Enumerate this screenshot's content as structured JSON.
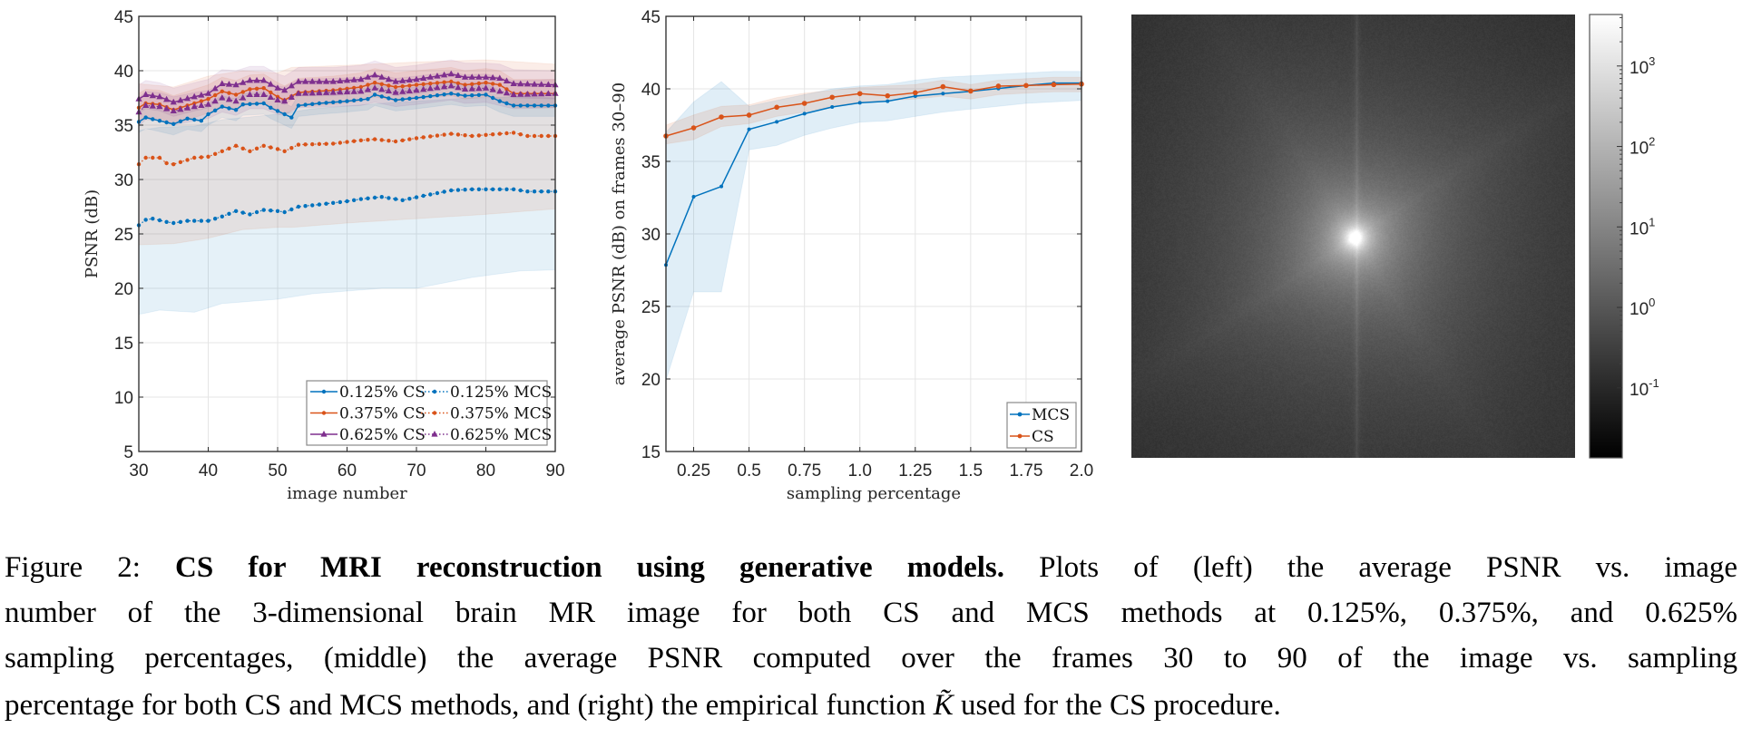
{
  "colors": {
    "blue": "#0072BD",
    "orange": "#D95319",
    "purple": "#7E2F8E",
    "axis": "#262626",
    "grid": "#e5e5e5"
  },
  "chart_data": [
    {
      "type": "line",
      "panel": "left",
      "xlabel": "image number",
      "ylabel": "PSNR (dB)",
      "xlim": [
        30,
        90
      ],
      "ylim": [
        5,
        45
      ],
      "xticks": [
        30,
        40,
        50,
        60,
        70,
        80,
        90
      ],
      "yticks": [
        5,
        10,
        15,
        20,
        25,
        30,
        35,
        40,
        45
      ],
      "grid": true,
      "legend_position": "bottom-right",
      "series": [
        {
          "name": "0.125% CS",
          "color": "blue",
          "style": "solid",
          "marker": "dot",
          "band_halfwidth": 1.0,
          "points": [
            [
              30,
              35.3
            ],
            [
              31,
              35.7
            ],
            [
              33,
              35.4
            ],
            [
              35,
              35.1
            ],
            [
              37,
              35.6
            ],
            [
              39,
              35.4
            ],
            [
              40,
              36
            ],
            [
              42,
              36.7
            ],
            [
              44,
              36.4
            ],
            [
              45,
              36.9
            ],
            [
              48,
              37
            ],
            [
              49,
              36.6
            ],
            [
              51,
              36
            ],
            [
              52,
              35.7
            ],
            [
              53,
              36.8
            ],
            [
              56,
              37
            ],
            [
              60,
              37.2
            ],
            [
              63,
              37.4
            ],
            [
              64,
              37.8
            ],
            [
              67,
              37.3
            ],
            [
              70,
              37.5
            ],
            [
              75,
              37.9
            ],
            [
              77,
              37.7
            ],
            [
              80,
              37.8
            ],
            [
              82,
              37.2
            ],
            [
              84,
              36.8
            ],
            [
              90,
              36.8
            ]
          ]
        },
        {
          "name": "0.125% MCS",
          "color": "blue",
          "style": "dotted",
          "marker": "dot",
          "points": [
            [
              30,
              25.8
            ],
            [
              31,
              26.3
            ],
            [
              32,
              26.4
            ],
            [
              34,
              26.1
            ],
            [
              35,
              26
            ],
            [
              37,
              26.2
            ],
            [
              40,
              26.2
            ],
            [
              42,
              26.6
            ],
            [
              44,
              27.1
            ],
            [
              46,
              26.8
            ],
            [
              48,
              27.2
            ],
            [
              50,
              27.1
            ],
            [
              51,
              27
            ],
            [
              53,
              27.5
            ],
            [
              56,
              27.7
            ],
            [
              60,
              28
            ],
            [
              62,
              28.2
            ],
            [
              65,
              28.4
            ],
            [
              68,
              28.1
            ],
            [
              71,
              28.5
            ],
            [
              75,
              29
            ],
            [
              78,
              29.1
            ],
            [
              84,
              29.1
            ],
            [
              86,
              28.9
            ],
            [
              90,
              28.9
            ]
          ],
          "band": [
            [
              30,
              17.6,
              34.5
            ],
            [
              33,
              18,
              34.8
            ],
            [
              38,
              17.8,
              34.9
            ],
            [
              42,
              18.6,
              35.5
            ],
            [
              50,
              19,
              36
            ],
            [
              55,
              19.5,
              36.5
            ],
            [
              65,
              20,
              37
            ],
            [
              70,
              20,
              37.2
            ],
            [
              78,
              21,
              37.5
            ],
            [
              85,
              21.6,
              37.6
            ],
            [
              90,
              21.7,
              37.5
            ]
          ]
        },
        {
          "name": "0.375% CS",
          "color": "orange",
          "style": "solid",
          "marker": "dot",
          "band_halfwidth": 1.3,
          "points": [
            [
              30,
              36.6
            ],
            [
              31,
              37
            ],
            [
              33,
              36.9
            ],
            [
              35,
              36.4
            ],
            [
              38,
              37
            ],
            [
              40,
              37.4
            ],
            [
              42,
              38.1
            ],
            [
              44,
              37.8
            ],
            [
              46,
              38.3
            ],
            [
              48,
              38.4
            ],
            [
              50,
              37.6
            ],
            [
              51,
              37.3
            ],
            [
              53,
              38
            ],
            [
              58,
              38.2
            ],
            [
              62,
              38.5
            ],
            [
              64,
              38.9
            ],
            [
              67,
              38.5
            ],
            [
              70,
              38.7
            ],
            [
              75,
              39
            ],
            [
              77,
              38.7
            ],
            [
              80,
              38.9
            ],
            [
              82,
              38.7
            ],
            [
              84,
              37.9
            ],
            [
              90,
              37.9
            ]
          ]
        },
        {
          "name": "0.375% MCS",
          "color": "orange",
          "style": "dotted",
          "marker": "dot",
          "points": [
            [
              30,
              31.4
            ],
            [
              31,
              32
            ],
            [
              33,
              32
            ],
            [
              34,
              31.5
            ],
            [
              35,
              31.4
            ],
            [
              38,
              32
            ],
            [
              40,
              32.1
            ],
            [
              42,
              32.6
            ],
            [
              44,
              33.1
            ],
            [
              46,
              32.6
            ],
            [
              48,
              33.1
            ],
            [
              50,
              32.8
            ],
            [
              51,
              32.6
            ],
            [
              53,
              33.2
            ],
            [
              58,
              33.3
            ],
            [
              62,
              33.6
            ],
            [
              64,
              33.7
            ],
            [
              67,
              33.5
            ],
            [
              70,
              33.8
            ],
            [
              75,
              34.2
            ],
            [
              78,
              34
            ],
            [
              84,
              34.3
            ],
            [
              86,
              34
            ],
            [
              90,
              34
            ]
          ],
          "band": [
            [
              30,
              24,
              38.8
            ],
            [
              35,
              24.1,
              38.5
            ],
            [
              40,
              24.6,
              39.5
            ],
            [
              45,
              25.4,
              40
            ],
            [
              50,
              25.6,
              39.8
            ],
            [
              52,
              25.6,
              40.3
            ],
            [
              60,
              26,
              40.5
            ],
            [
              70,
              26.4,
              40.8
            ],
            [
              80,
              26.8,
              41
            ],
            [
              90,
              27.3,
              40.6
            ]
          ]
        },
        {
          "name": "0.625% CS",
          "color": "purple",
          "style": "solid",
          "marker": "triangle",
          "band_halfwidth": 1.3,
          "points": [
            [
              30,
              37.4
            ],
            [
              31,
              37.8
            ],
            [
              33,
              37.6
            ],
            [
              35,
              37.1
            ],
            [
              38,
              37.6
            ],
            [
              40,
              37.9
            ],
            [
              42,
              38.8
            ],
            [
              44,
              38.7
            ],
            [
              46,
              39.1
            ],
            [
              48,
              39.1
            ],
            [
              50,
              38.4
            ],
            [
              51,
              38.2
            ],
            [
              53,
              39
            ],
            [
              58,
              39
            ],
            [
              62,
              39.2
            ],
            [
              64,
              39.6
            ],
            [
              67,
              39
            ],
            [
              70,
              39.2
            ],
            [
              75,
              39.7
            ],
            [
              77,
              39.4
            ],
            [
              80,
              39.4
            ],
            [
              82,
              39.3
            ],
            [
              84,
              38.8
            ],
            [
              90,
              38.7
            ]
          ]
        },
        {
          "name": "0.625% MCS",
          "color": "purple",
          "style": "dotted",
          "marker": "triangle",
          "band_halfwidth": 1.3,
          "points": [
            [
              30,
              36.2
            ],
            [
              31,
              36.8
            ],
            [
              33,
              36.7
            ],
            [
              35,
              36.3
            ],
            [
              38,
              36.7
            ],
            [
              40,
              36.9
            ],
            [
              42,
              37.5
            ],
            [
              44,
              37.2
            ],
            [
              46,
              37.8
            ],
            [
              48,
              37.8
            ],
            [
              50,
              37.3
            ],
            [
              51,
              37.2
            ],
            [
              53,
              37.9
            ],
            [
              58,
              38
            ],
            [
              62,
              38.1
            ],
            [
              64,
              38.4
            ],
            [
              67,
              38
            ],
            [
              70,
              38.2
            ],
            [
              75,
              38.6
            ],
            [
              77,
              38.3
            ],
            [
              80,
              38.4
            ],
            [
              84,
              37.8
            ],
            [
              90,
              37.9
            ]
          ]
        }
      ]
    },
    {
      "type": "line",
      "panel": "middle",
      "xlabel": "sampling percentage",
      "ylabel": "average PSNR (dB) on frames 30–90",
      "xlim": [
        0.125,
        2.0
      ],
      "ylim": [
        15,
        45
      ],
      "xticks": [
        0.25,
        0.5,
        0.75,
        1.0,
        1.25,
        1.5,
        1.75,
        2.0
      ],
      "xtick_labels": [
        "0.25",
        "0.5",
        "0.75",
        "1.0",
        "1.25",
        "1.5",
        "1.75",
        "2.0"
      ],
      "yticks": [
        15,
        20,
        25,
        30,
        35,
        40,
        45
      ],
      "grid": true,
      "legend_position": "bottom-right",
      "x": [
        0.125,
        0.25,
        0.375,
        0.5,
        0.625,
        0.75,
        0.875,
        1.0,
        1.125,
        1.25,
        1.375,
        1.5,
        1.625,
        1.75,
        1.875,
        2.0
      ],
      "series": [
        {
          "name": "MCS",
          "color": "blue",
          "values": [
            27.86,
            32.56,
            33.27,
            37.21,
            37.73,
            38.29,
            38.75,
            39.04,
            39.15,
            39.5,
            39.67,
            39.83,
            40.02,
            40.23,
            40.4,
            40.4
          ],
          "band_lower": [
            19.9,
            26,
            26,
            35.8,
            36.1,
            36.8,
            37.3,
            37.7,
            37.8,
            38.1,
            38.4,
            38.6,
            38.8,
            39,
            39.1,
            39.2
          ],
          "band_upper": [
            37,
            39.1,
            40.5,
            38.8,
            39.2,
            39.6,
            40,
            40.2,
            40.3,
            40.6,
            40.8,
            40.9,
            41,
            41.1,
            41.2,
            41.2
          ]
        },
        {
          "name": "CS",
          "color": "orange",
          "values": [
            36.75,
            37.31,
            38.06,
            38.19,
            38.73,
            39.0,
            39.42,
            39.67,
            39.52,
            39.73,
            40.15,
            39.85,
            40.19,
            40.23,
            40.29,
            40.33
          ],
          "band_lower": [
            36.2,
            36.5,
            37.4,
            37.6,
            38.1,
            38.4,
            38.8,
            39.1,
            39.2,
            39.3,
            39.5,
            39.3,
            39.6,
            39.7,
            39.8,
            39.8
          ],
          "band_upper": [
            37.5,
            38.2,
            38.8,
            38.9,
            39.4,
            39.7,
            39.9,
            40.1,
            40.2,
            40.3,
            40.6,
            40.3,
            40.6,
            40.7,
            40.8,
            40.8
          ]
        }
      ]
    },
    {
      "type": "heatmap",
      "panel": "right",
      "colormap": "gray",
      "colorbar_scale": "log",
      "colorbar_log10_range": [
        -1.87,
        3.64
      ],
      "colorbar_tick_exponents": [
        3,
        2,
        1,
        0,
        -1
      ],
      "colorbar_tick_base": "10"
    }
  ],
  "caption": {
    "label": "Figure 2:",
    "title": "CS for MRI reconstruction using generative models.",
    "line1_rest": "Plots of (left) the average PSNR vs. image",
    "line2": "number of the 3-dimensional brain MR image for both CS and MCS methods at 0.125%, 0.375%, and 0.625%",
    "line3": "sampling percentages, (middle) the average PSNR computed over the frames 30 to 90 of the image vs. sampling",
    "line4_a": "percentage for both CS and MCS methods, and (right) the empirical function",
    "symbol": "K̃",
    "line4_b": "used for the CS procedure."
  }
}
